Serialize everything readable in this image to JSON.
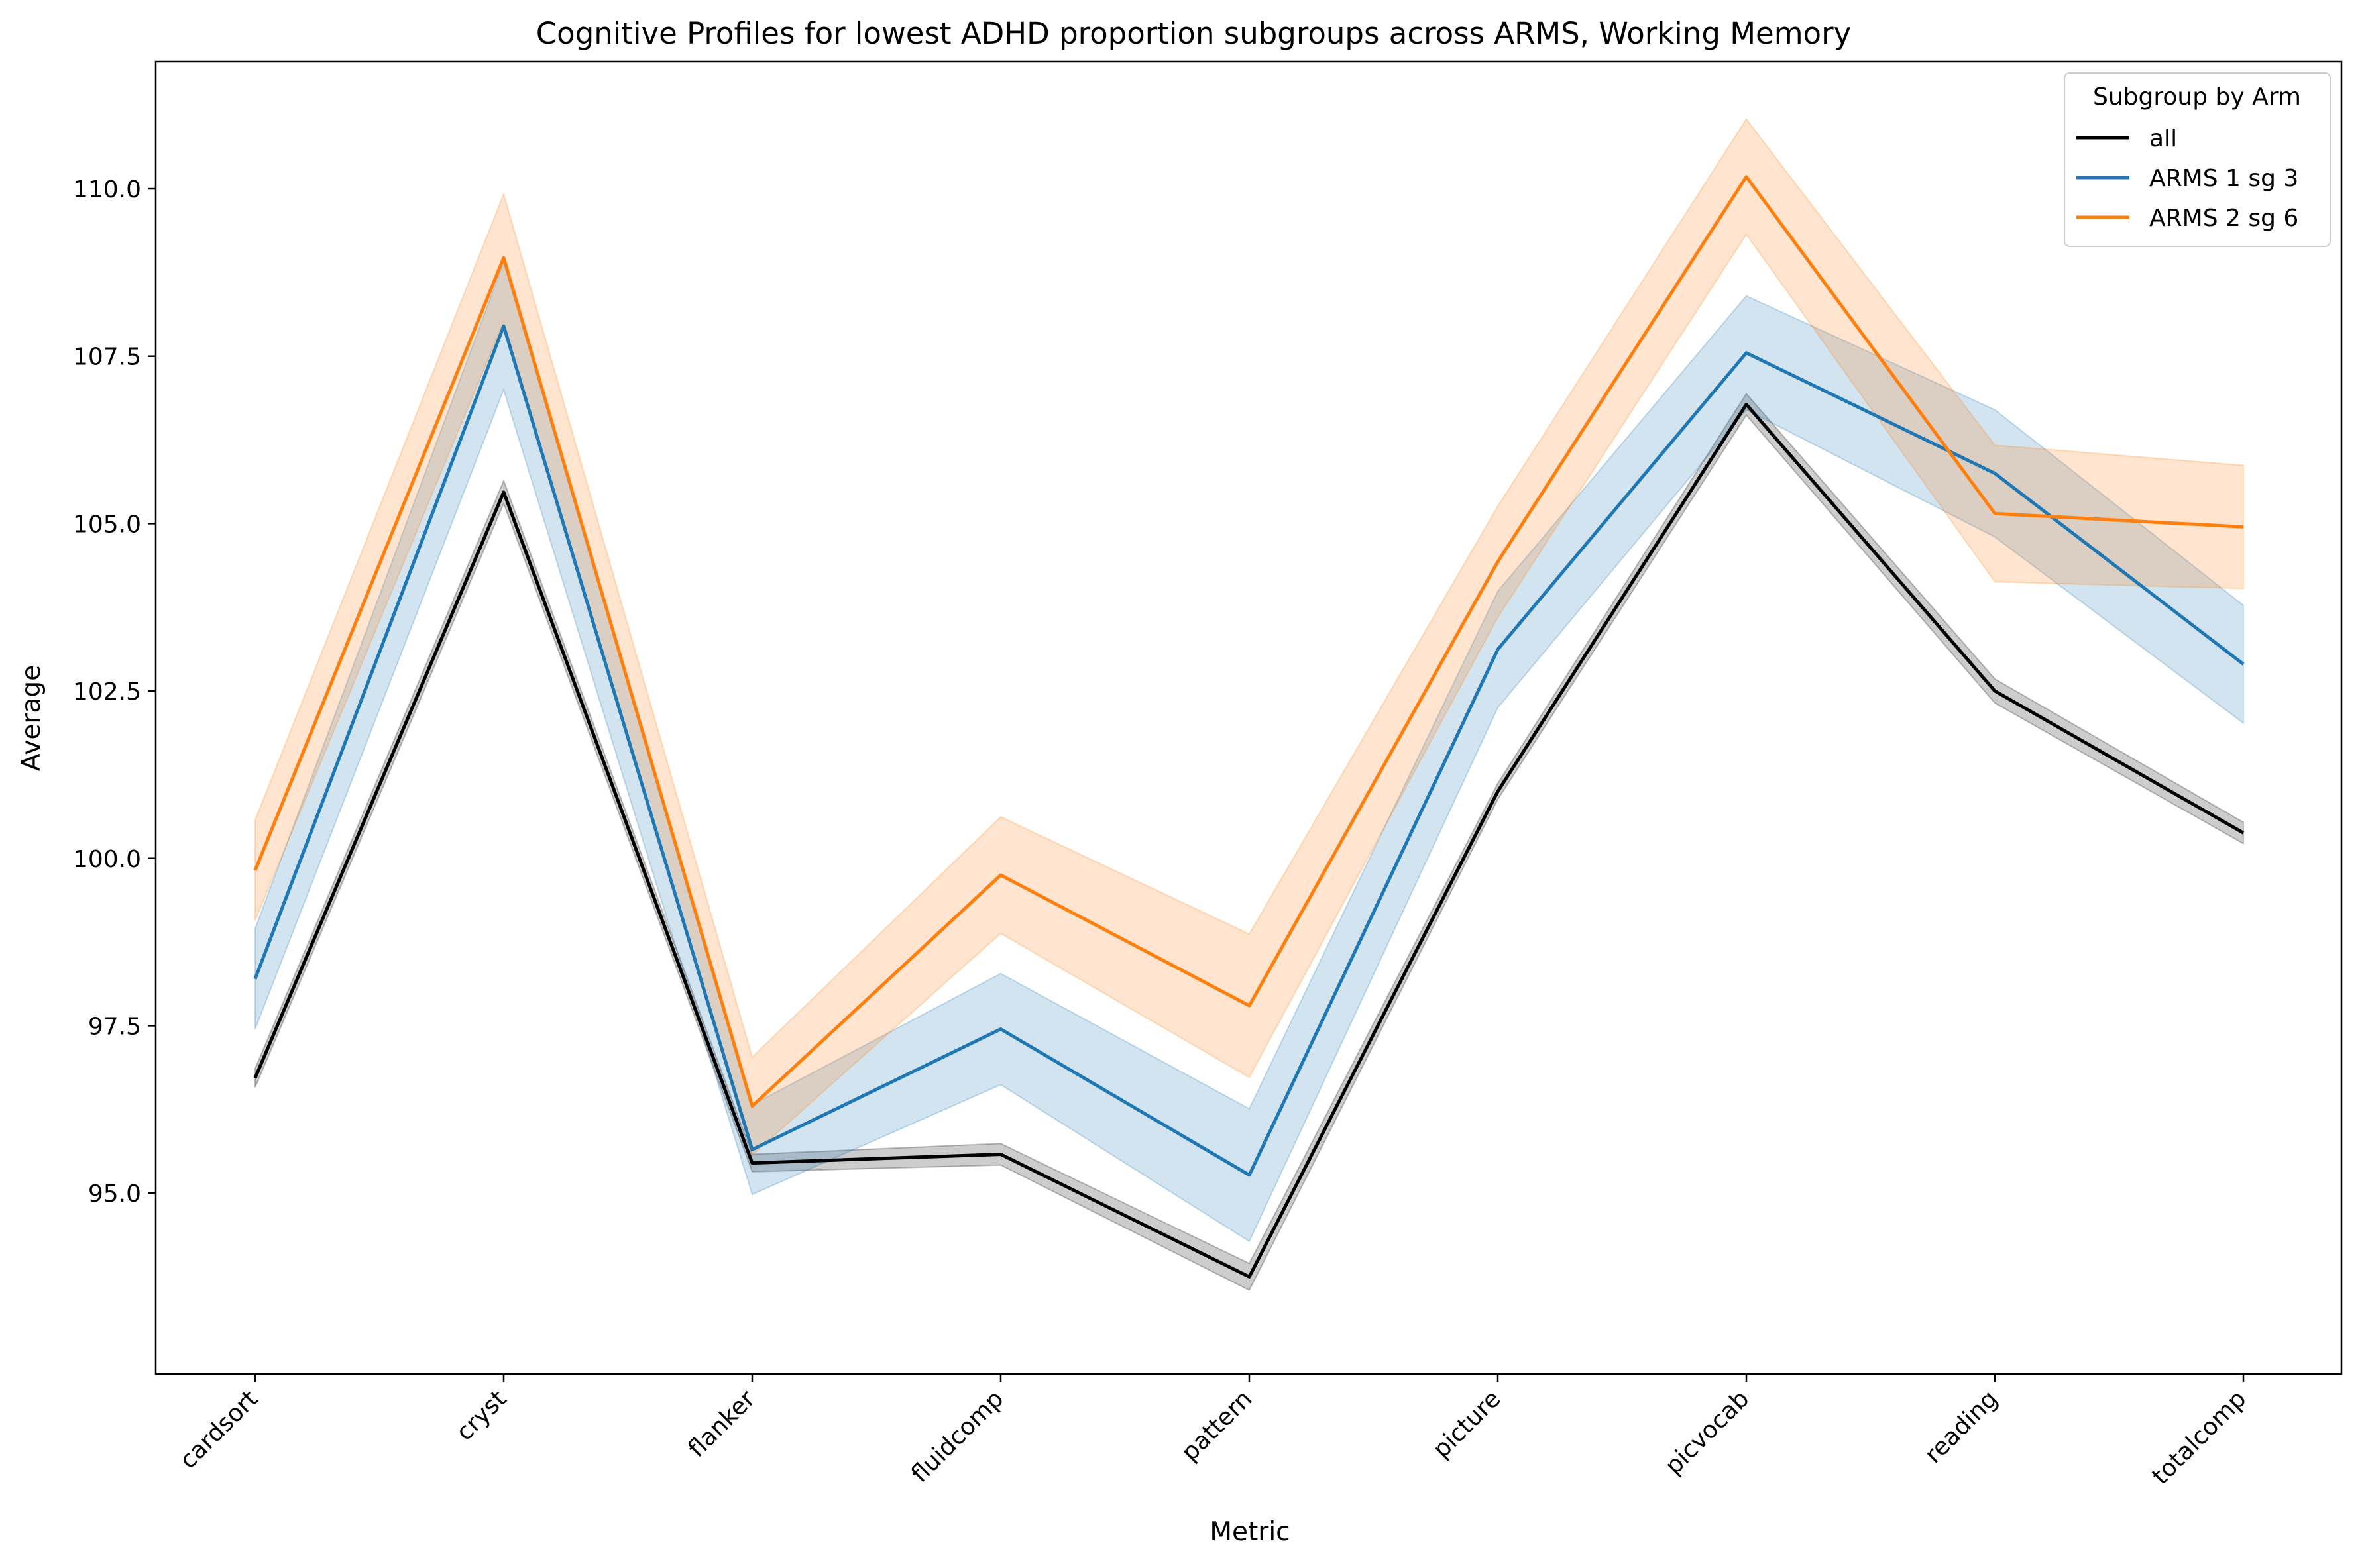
{
  "chart_data": {
    "type": "line",
    "title": "Cognitive Profiles for lowest ADHD proportion subgroups across ARMS, Working Memory",
    "xlabel": "Metric",
    "ylabel": "Average",
    "categories": [
      "cardsort",
      "cryst",
      "flanker",
      "fluidcomp",
      "pattern",
      "picture",
      "picvocab",
      "reading",
      "totalcomp"
    ],
    "ylim": [
      92.3,
      111.9
    ],
    "yticks": [
      95.0,
      97.5,
      100.0,
      102.5,
      105.0,
      107.5,
      110.0
    ],
    "ytick_labels": [
      "95.0",
      "97.5",
      "100.0",
      "102.5",
      "105.0",
      "107.5",
      "110.0"
    ],
    "grid": false,
    "legend": {
      "title": "Subgroup by Arm",
      "position": "top-right"
    },
    "series": [
      {
        "name": "all",
        "color": "#000000",
        "values": [
          96.72,
          105.47,
          95.45,
          95.58,
          93.75,
          101.0,
          106.78,
          102.5,
          100.38
        ],
        "lower": [
          96.58,
          105.3,
          95.32,
          95.42,
          93.55,
          100.88,
          106.62,
          102.32,
          100.22
        ],
        "upper": [
          96.86,
          105.64,
          95.58,
          95.74,
          93.95,
          101.12,
          106.94,
          102.68,
          100.54
        ]
      },
      {
        "name": "ARMS 1 sg 3",
        "color": "#1f77b4",
        "values": [
          98.2,
          107.95,
          95.65,
          97.45,
          95.27,
          103.12,
          107.55,
          105.75,
          102.9
        ],
        "lower": [
          97.45,
          107.0,
          94.98,
          96.62,
          94.28,
          102.25,
          106.7,
          104.8,
          102.02
        ],
        "upper": [
          98.95,
          108.9,
          96.32,
          98.28,
          96.26,
          103.99,
          108.4,
          106.7,
          103.78
        ]
      },
      {
        "name": "ARMS 2 sg 6",
        "color": "#ff7f0e",
        "values": [
          99.82,
          108.97,
          96.3,
          99.75,
          97.8,
          104.43,
          110.18,
          105.15,
          104.95
        ],
        "lower": [
          99.07,
          108.02,
          95.57,
          98.88,
          96.73,
          103.6,
          109.32,
          104.13,
          104.03
        ],
        "upper": [
          100.57,
          109.92,
          97.03,
          100.62,
          98.87,
          105.26,
          111.04,
          106.17,
          105.87
        ]
      }
    ]
  }
}
